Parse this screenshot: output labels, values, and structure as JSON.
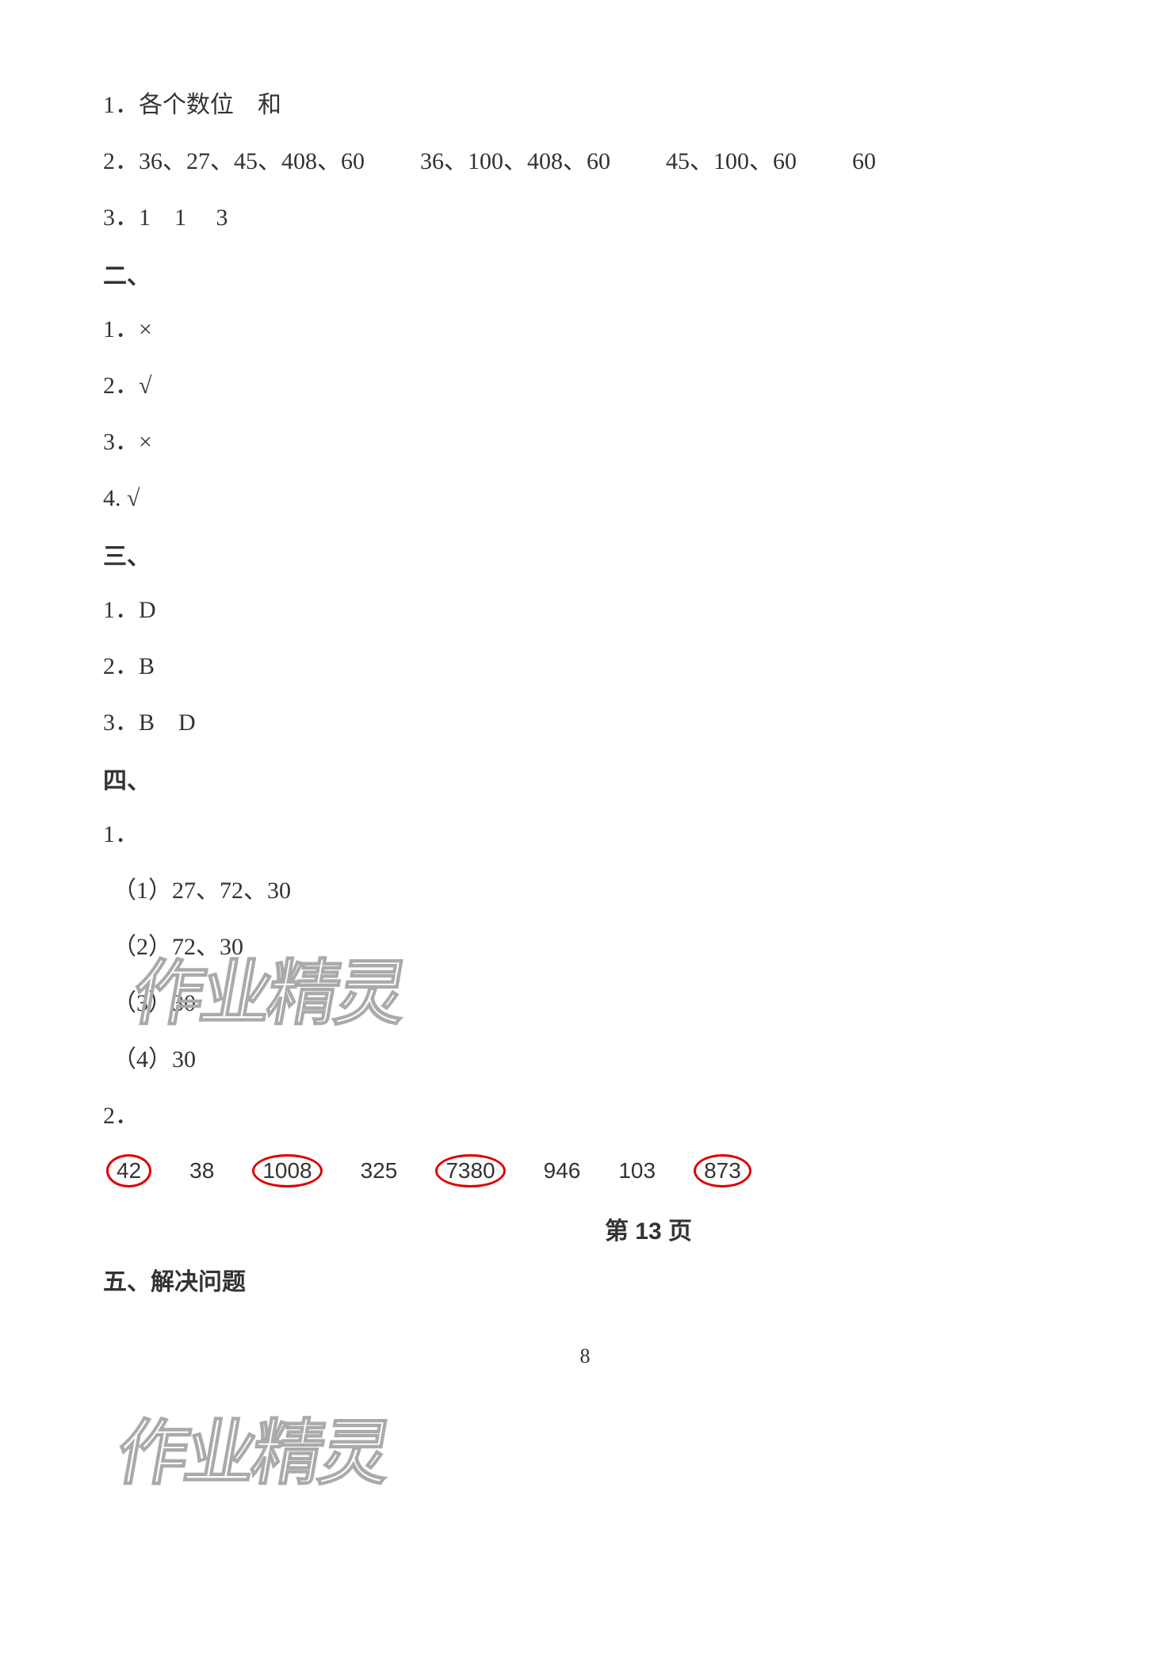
{
  "lines": {
    "l1_prefix": "1．",
    "l1_a": "各个数位",
    "l1_b": "和",
    "l2_prefix": "2．",
    "l2_g1": "36、27、45、408、60",
    "l2_g2": "36、100、408、60",
    "l2_g3": "45、100、60",
    "l2_g4": "60",
    "l3_prefix": "3．",
    "l3_a": "1",
    "l3_b": "1",
    "l3_c": "3"
  },
  "sec2": {
    "header": "二、",
    "i1": "1．×",
    "i2": "2．√",
    "i3": "3．×",
    "i4": "4. √"
  },
  "sec3": {
    "header": "三、",
    "i1": "1．D",
    "i2": "2．B",
    "i3_prefix": "3．",
    "i3_a": "B",
    "i3_b": "D"
  },
  "sec4": {
    "header": "四、",
    "i1": "1．",
    "s1": "（1）27、72、30",
    "s2": "（2）72、30",
    "s3": "（3）30",
    "s4": "（4）30",
    "i2": "2．"
  },
  "numbers": {
    "n1": "42",
    "n2": "38",
    "n3": "1008",
    "n4": "325",
    "n5": "7380",
    "n6": "946",
    "n7": "103",
    "n8": "873",
    "circled": [
      true,
      false,
      true,
      false,
      true,
      false,
      false,
      true
    ]
  },
  "page_marker": "第 13 页",
  "sec5": {
    "header": "五、解决问题"
  },
  "page_footer": "8",
  "watermark_text": "作业精灵",
  "colors": {
    "text": "#333333",
    "circle": "#dd0000",
    "watermark_stroke": "#aaaaaa",
    "background": "#ffffff"
  },
  "fontsize": {
    "body": 30,
    "numbers": 28,
    "footer": 26,
    "watermark": 90
  }
}
